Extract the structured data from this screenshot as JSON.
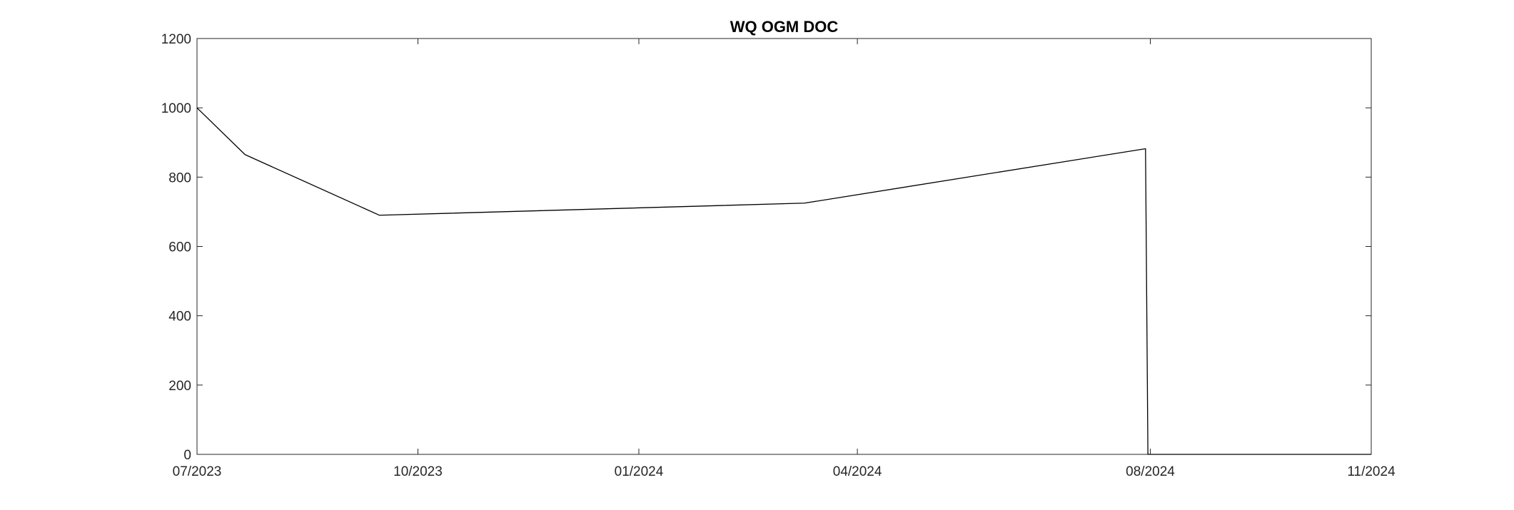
{
  "chart_data": {
    "type": "line",
    "title": "WQ OGM DOC",
    "xlabel": "",
    "ylabel": "",
    "x_ticks": [
      "07/2023",
      "10/2023",
      "01/2024",
      "04/2024",
      "08/2024",
      "11/2024"
    ],
    "x_tick_dates": [
      "2023-07-01",
      "2023-10-01",
      "2024-01-01",
      "2024-04-01",
      "2024-08-01",
      "2024-11-01"
    ],
    "xlim": [
      "2023-07-01",
      "2024-11-01"
    ],
    "y_ticks": [
      0,
      200,
      400,
      600,
      800,
      1000,
      1200
    ],
    "ylim": [
      0,
      1200
    ],
    "grid": false,
    "series": [
      {
        "color": "#000000",
        "x": [
          "2023-07-01",
          "2023-07-21",
          "2023-09-15",
          "2024-03-10",
          "2024-07-30",
          "2024-07-31",
          "2024-11-01"
        ],
        "y": [
          1000,
          865,
          690,
          725,
          882,
          0,
          0
        ]
      }
    ]
  }
}
